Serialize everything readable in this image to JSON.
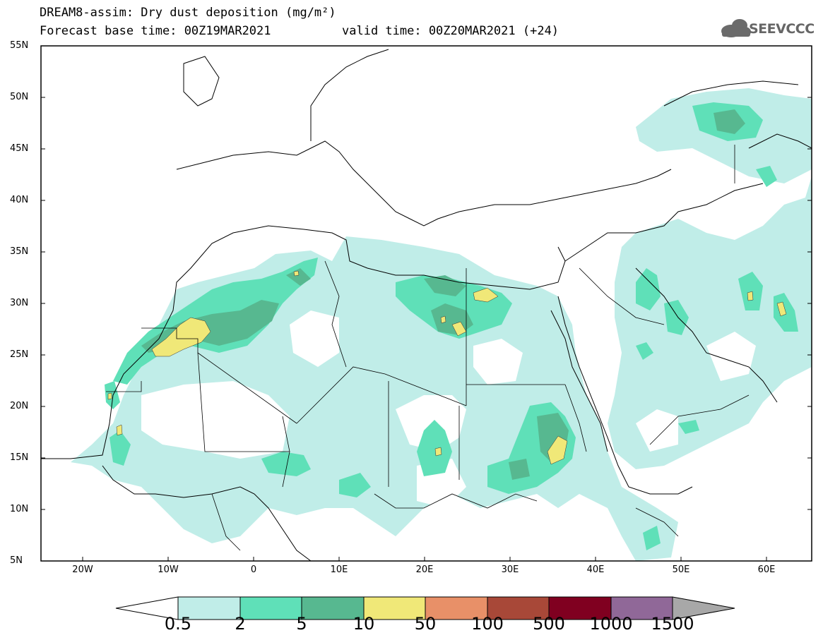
{
  "title": {
    "line1": "DREAM8-assim: Dry dust deposition (mg/m²)",
    "line2": "Forecast base time: 00Z19MAR2021",
    "valid": "valid time: 00Z20MAR2021 (+24)"
  },
  "logo": {
    "text": "SEEVCCC",
    "icon": "cloud-logo-icon"
  },
  "axes": {
    "lat_labels": [
      "55N",
      "50N",
      "45N",
      "40N",
      "35N",
      "30N",
      "25N",
      "20N",
      "15N",
      "10N",
      "5N"
    ],
    "lon_labels": [
      "20W",
      "10W",
      "0",
      "10E",
      "20E",
      "30E",
      "40E",
      "50E",
      "60E"
    ],
    "lat_range": [
      5,
      55
    ],
    "lon_range": [
      -25,
      65
    ]
  },
  "colorbar": {
    "labels": [
      "0.5",
      "2",
      "5",
      "10",
      "50",
      "100",
      "500",
      "1000",
      "1500"
    ],
    "colors": [
      "#c0ede8",
      "#5fe0b8",
      "#57b890",
      "#f0e878",
      "#e89068",
      "#a84838",
      "#800020",
      "#906898",
      "#a8a8a8"
    ],
    "arrow_low_color": "#ffffff",
    "arrow_high_color": "#a8a8a8"
  },
  "colors": {
    "level1": "#c0ede8",
    "level2": "#5fe0b8",
    "level3": "#57b890",
    "level4": "#f0e878"
  }
}
